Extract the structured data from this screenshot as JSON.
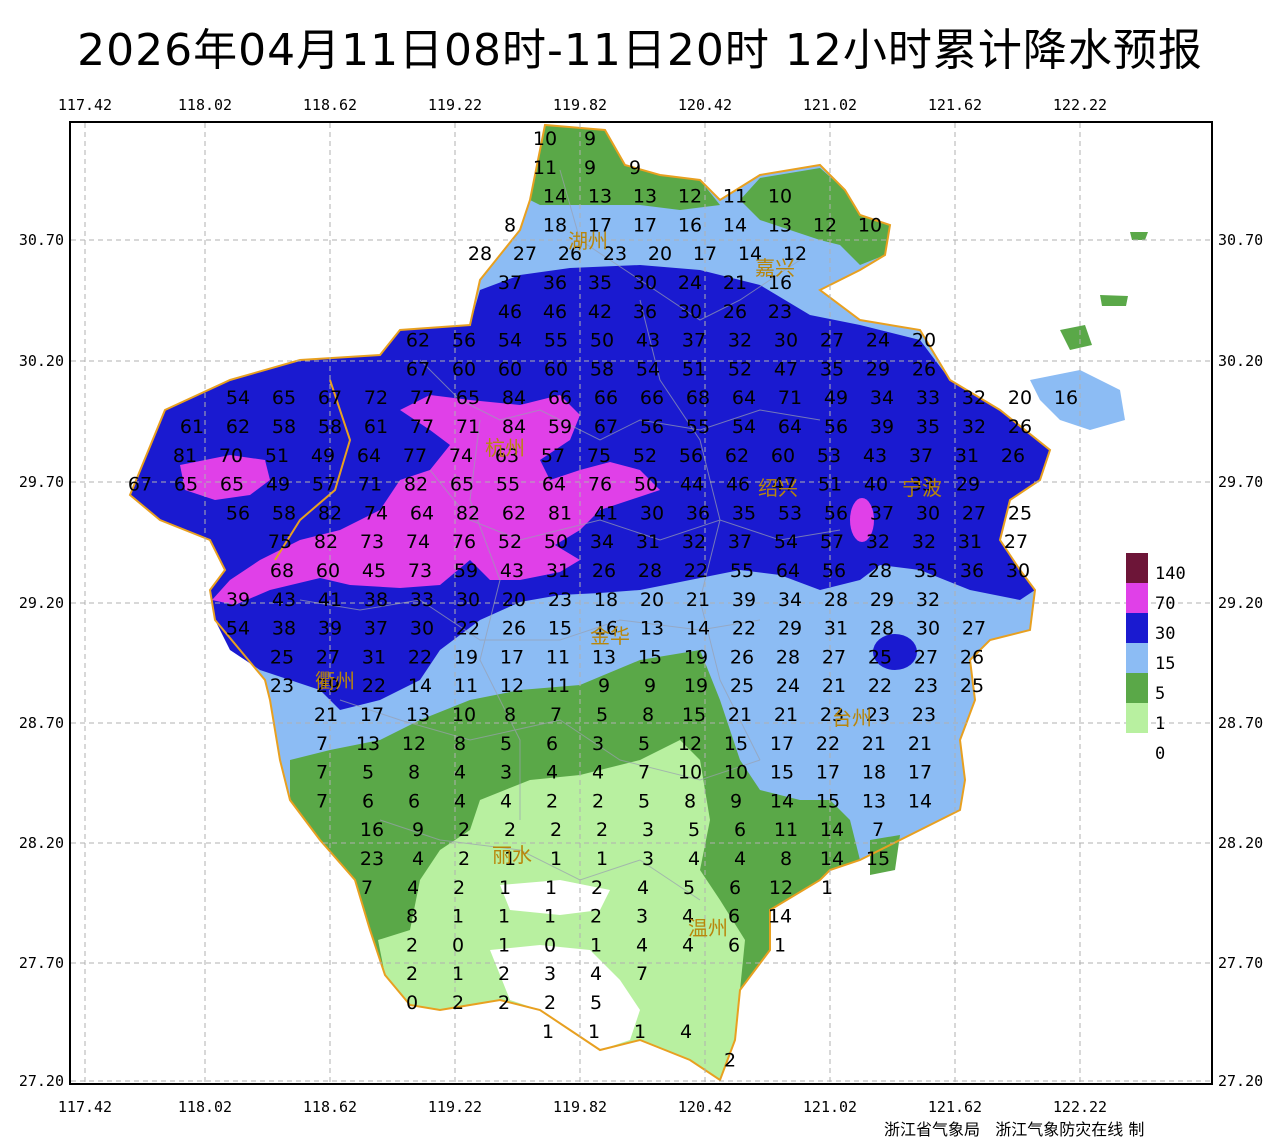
{
  "title": "2026年04月11日08时-11日20时 12小时累计降水预报",
  "credit": "浙江省气象局   浙江气象防灾在线 制",
  "axes": {
    "lon_ticks": [
      "117.42",
      "118.02",
      "118.62",
      "119.22",
      "119.82",
      "120.42",
      "121.02",
      "121.62",
      "122.22"
    ],
    "lat_ticks": [
      "30.70",
      "30.20",
      "29.70",
      "29.20",
      "28.70",
      "28.20",
      "27.70",
      "27.20"
    ]
  },
  "legend": [
    {
      "label": "140",
      "color": "#6d1538"
    },
    {
      "label": "70",
      "color": "#e040e8"
    },
    {
      "label": "30",
      "color": "#1a1ad0"
    },
    {
      "label": "15",
      "color": "#8cbcf4"
    },
    {
      "label": "5",
      "color": "#5aa848"
    },
    {
      "label": "1",
      "color": "#b8f0a0"
    },
    {
      "label": "0",
      "color": "#ffffff"
    }
  ],
  "cities": [
    "湖州",
    "嘉兴",
    "杭州",
    "绍兴",
    "宁波",
    "金华",
    "衢州",
    "台州",
    "丽水",
    "温州"
  ],
  "grid_values": [
    [
      "10",
      "9"
    ],
    [
      "11",
      "9",
      "9"
    ],
    [
      "14",
      "13",
      "13",
      "12",
      "11",
      "10"
    ],
    [
      "8",
      "18",
      "17",
      "17",
      "16",
      "14",
      "13",
      "12",
      "10"
    ],
    [
      "28",
      "27",
      "26",
      "23",
      "20",
      "17",
      "14",
      "12"
    ],
    [
      "37",
      "36",
      "35",
      "30",
      "24",
      "21",
      "16"
    ],
    [
      "46",
      "46",
      "42",
      "36",
      "30",
      "26",
      "23"
    ],
    [
      "62",
      "56",
      "54",
      "55",
      "50",
      "43",
      "37",
      "32",
      "30",
      "27",
      "24",
      "20"
    ],
    [
      "67",
      "60",
      "60",
      "60",
      "58",
      "54",
      "51",
      "52",
      "47",
      "35",
      "29",
      "26"
    ],
    [
      "54",
      "65",
      "67",
      "72",
      "77",
      "65",
      "84",
      "66",
      "66",
      "66",
      "68",
      "64",
      "71",
      "49",
      "34",
      "33",
      "32",
      "20",
      "16"
    ],
    [
      "61",
      "62",
      "58",
      "58",
      "61",
      "77",
      "71",
      "84",
      "59",
      "67",
      "56",
      "55",
      "54",
      "64",
      "56",
      "39",
      "35",
      "32",
      "26"
    ],
    [
      "81",
      "70",
      "51",
      "49",
      "64",
      "77",
      "74",
      "63",
      "57",
      "75",
      "52",
      "56",
      "62",
      "60",
      "53",
      "43",
      "37",
      "31",
      "26"
    ],
    [
      "67",
      "65",
      "65",
      "49",
      "57",
      "71",
      "82",
      "65",
      "55",
      "64",
      "76",
      "50",
      "44",
      "46",
      "47",
      "51",
      "40",
      "33",
      "29"
    ],
    [
      "56",
      "58",
      "82",
      "74",
      "64",
      "82",
      "62",
      "81",
      "41",
      "30",
      "36",
      "35",
      "53",
      "56",
      "37",
      "30",
      "27",
      "25"
    ],
    [
      "75",
      "82",
      "73",
      "74",
      "76",
      "52",
      "50",
      "34",
      "31",
      "32",
      "37",
      "54",
      "57",
      "32",
      "32",
      "31",
      "27"
    ],
    [
      "68",
      "60",
      "45",
      "73",
      "59",
      "43",
      "31",
      "26",
      "28",
      "22",
      "55",
      "64",
      "56",
      "28",
      "35",
      "36",
      "30"
    ],
    [
      "39",
      "43",
      "41",
      "38",
      "33",
      "30",
      "20",
      "23",
      "18",
      "20",
      "21",
      "39",
      "34",
      "28",
      "29",
      "32"
    ],
    [
      "54",
      "38",
      "39",
      "37",
      "30",
      "22",
      "26",
      "15",
      "16",
      "13",
      "14",
      "22",
      "29",
      "31",
      "28",
      "30",
      "27"
    ],
    [
      "25",
      "27",
      "31",
      "22",
      "19",
      "17",
      "11",
      "13",
      "15",
      "19",
      "26",
      "28",
      "27",
      "25",
      "27",
      "26"
    ],
    [
      "23",
      "29",
      "22",
      "14",
      "11",
      "12",
      "11",
      "9",
      "9",
      "19",
      "25",
      "24",
      "21",
      "22",
      "23",
      "25"
    ],
    [
      "21",
      "17",
      "13",
      "10",
      "8",
      "7",
      "5",
      "8",
      "15",
      "21",
      "21",
      "23",
      "23",
      "23"
    ],
    [
      "7",
      "13",
      "12",
      "8",
      "5",
      "6",
      "3",
      "5",
      "12",
      "15",
      "17",
      "22",
      "21",
      "21"
    ],
    [
      "7",
      "5",
      "8",
      "4",
      "3",
      "4",
      "4",
      "7",
      "10",
      "10",
      "15",
      "17",
      "18",
      "17"
    ],
    [
      "7",
      "6",
      "6",
      "4",
      "4",
      "2",
      "2",
      "5",
      "8",
      "9",
      "14",
      "15",
      "13",
      "14"
    ],
    [
      "16",
      "9",
      "2",
      "2",
      "2",
      "2",
      "3",
      "5",
      "6",
      "11",
      "14",
      "7"
    ],
    [
      "23",
      "4",
      "2",
      "1",
      "1",
      "1",
      "3",
      "4",
      "4",
      "8",
      "14",
      "15"
    ],
    [
      "7",
      "4",
      "2",
      "1",
      "1",
      "2",
      "4",
      "5",
      "6",
      "12",
      "1"
    ],
    [
      "8",
      "1",
      "1",
      "1",
      "2",
      "3",
      "4",
      "6",
      "14"
    ],
    [
      "2",
      "0",
      "1",
      "0",
      "1",
      "4",
      "4",
      "6",
      "1"
    ],
    [
      "2",
      "1",
      "2",
      "3",
      "4",
      "7"
    ],
    [
      "0",
      "2",
      "2",
      "2",
      "5"
    ],
    [
      "1",
      "1",
      "1",
      "4"
    ],
    [
      "2"
    ]
  ]
}
